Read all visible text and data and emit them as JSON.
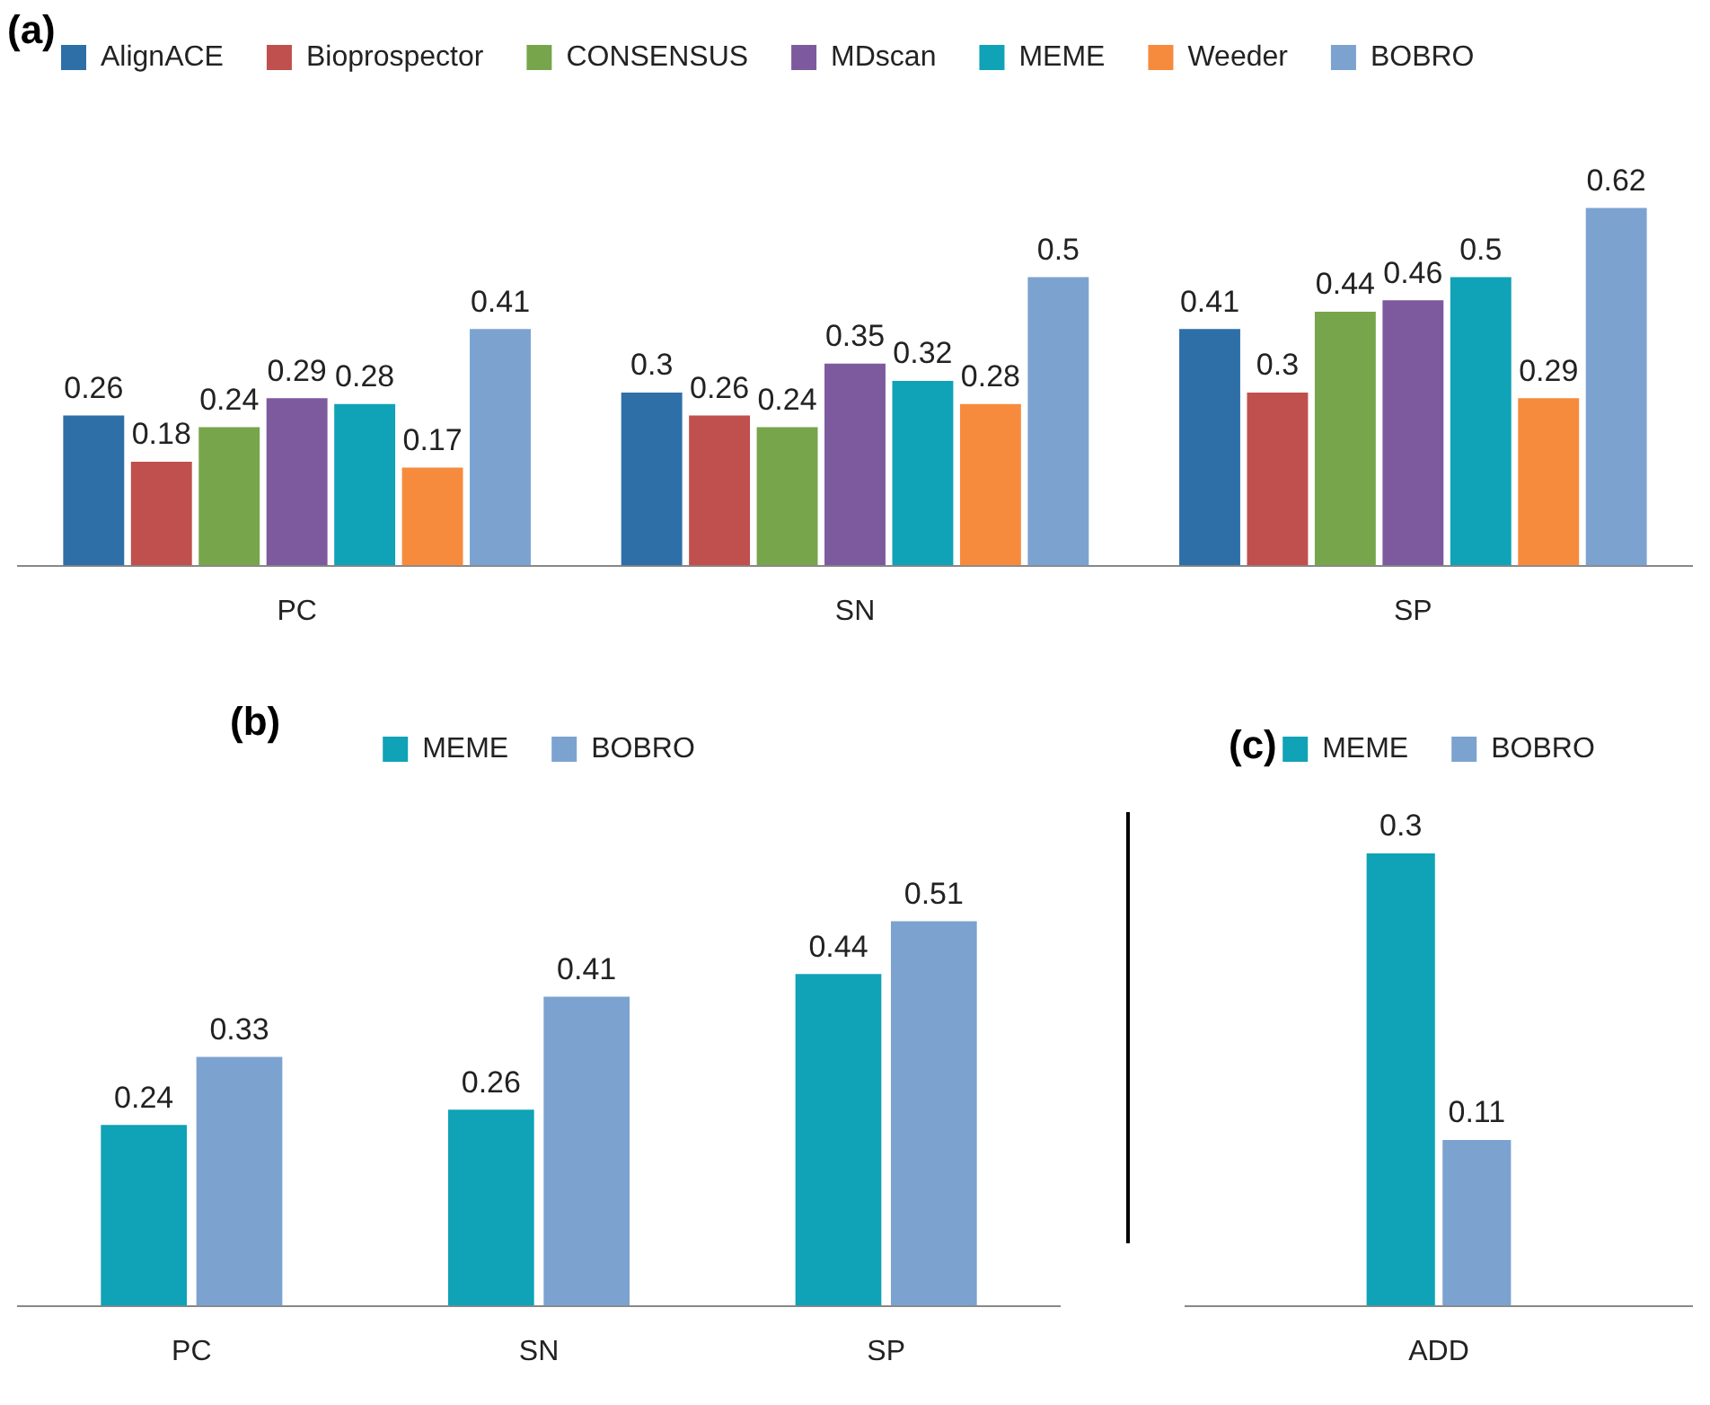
{
  "chart_data": [
    {
      "type": "bar",
      "title": "(a)",
      "categories": [
        "PC",
        "SN",
        "SP"
      ],
      "legend": "top",
      "data_labels": true,
      "grid": false,
      "series": [
        {
          "name": "AlignACE",
          "color": "#2e6fa8",
          "values": [
            0.26,
            0.3,
            0.41
          ]
        },
        {
          "name": "Bioprospector",
          "color": "#c0504d",
          "values": [
            0.18,
            0.26,
            0.3
          ]
        },
        {
          "name": "CONSENSUS",
          "color": "#77a54b",
          "values": [
            0.24,
            0.24,
            0.44
          ]
        },
        {
          "name": "MDscan",
          "color": "#7d5a9e",
          "values": [
            0.29,
            0.35,
            0.46
          ]
        },
        {
          "name": "MEME",
          "color": "#10a2b6",
          "values": [
            0.28,
            0.32,
            0.5
          ]
        },
        {
          "name": "Weeder",
          "color": "#f68b3d",
          "values": [
            0.17,
            0.28,
            0.29
          ]
        },
        {
          "name": "BOBRO",
          "color": "#7ca2d0",
          "values": [
            0.41,
            0.5,
            0.62
          ]
        }
      ]
    },
    {
      "type": "bar",
      "title": "(b)",
      "categories": [
        "PC",
        "SN",
        "SP"
      ],
      "legend": "top",
      "data_labels": true,
      "grid": false,
      "series": [
        {
          "name": "MEME",
          "color": "#10a2b6",
          "values": [
            0.24,
            0.26,
            0.44
          ]
        },
        {
          "name": "BOBRO",
          "color": "#7ca2d0",
          "values": [
            0.33,
            0.41,
            0.51
          ]
        }
      ]
    },
    {
      "type": "bar",
      "title": "(c)",
      "categories": [
        "ADD"
      ],
      "legend": "top",
      "data_labels": true,
      "grid": false,
      "series": [
        {
          "name": "MEME",
          "color": "#10a2b6",
          "values": [
            0.3
          ]
        },
        {
          "name": "BOBRO",
          "color": "#7ca2d0",
          "values": [
            0.11
          ]
        }
      ]
    }
  ]
}
